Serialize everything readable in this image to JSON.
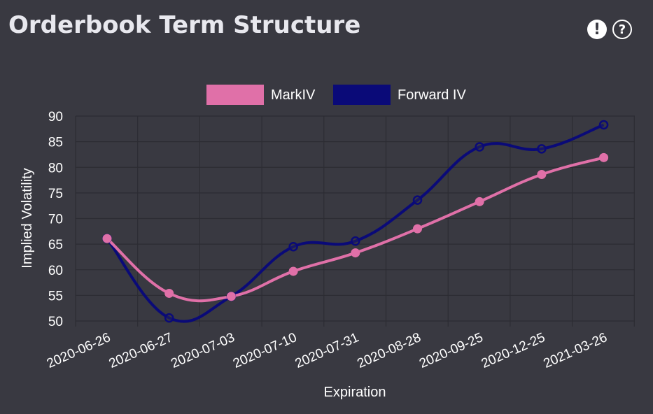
{
  "header": {
    "title": "Orderbook Term Structure",
    "alert_icon": "exclamation-icon",
    "help_icon": "question-icon",
    "alert_glyph": "!",
    "help_glyph": "?"
  },
  "chart_data": {
    "type": "line",
    "title": "",
    "xlabel": "Expiration",
    "ylabel": "Implied Volatility",
    "categories": [
      "2020-06-26",
      "2020-06-27",
      "2020-07-03",
      "2020-07-10",
      "2020-07-31",
      "2020-08-28",
      "2020-09-25",
      "2020-12-25",
      "2021-03-26"
    ],
    "ylim": [
      50,
      90
    ],
    "yticks": [
      50,
      55,
      60,
      65,
      70,
      75,
      80,
      85,
      90
    ],
    "grid": true,
    "legend_position": "top-center",
    "series": [
      {
        "name": "MarkIV",
        "color": "#e070a8",
        "values": [
          66.1,
          55.4,
          54.8,
          59.7,
          63.3,
          68.0,
          73.3,
          78.6,
          81.9
        ]
      },
      {
        "name": "Forward IV",
        "color": "#0a0a78",
        "values": [
          66.1,
          50.6,
          54.8,
          64.5,
          65.6,
          73.6,
          84.0,
          83.6,
          88.3
        ]
      }
    ]
  }
}
